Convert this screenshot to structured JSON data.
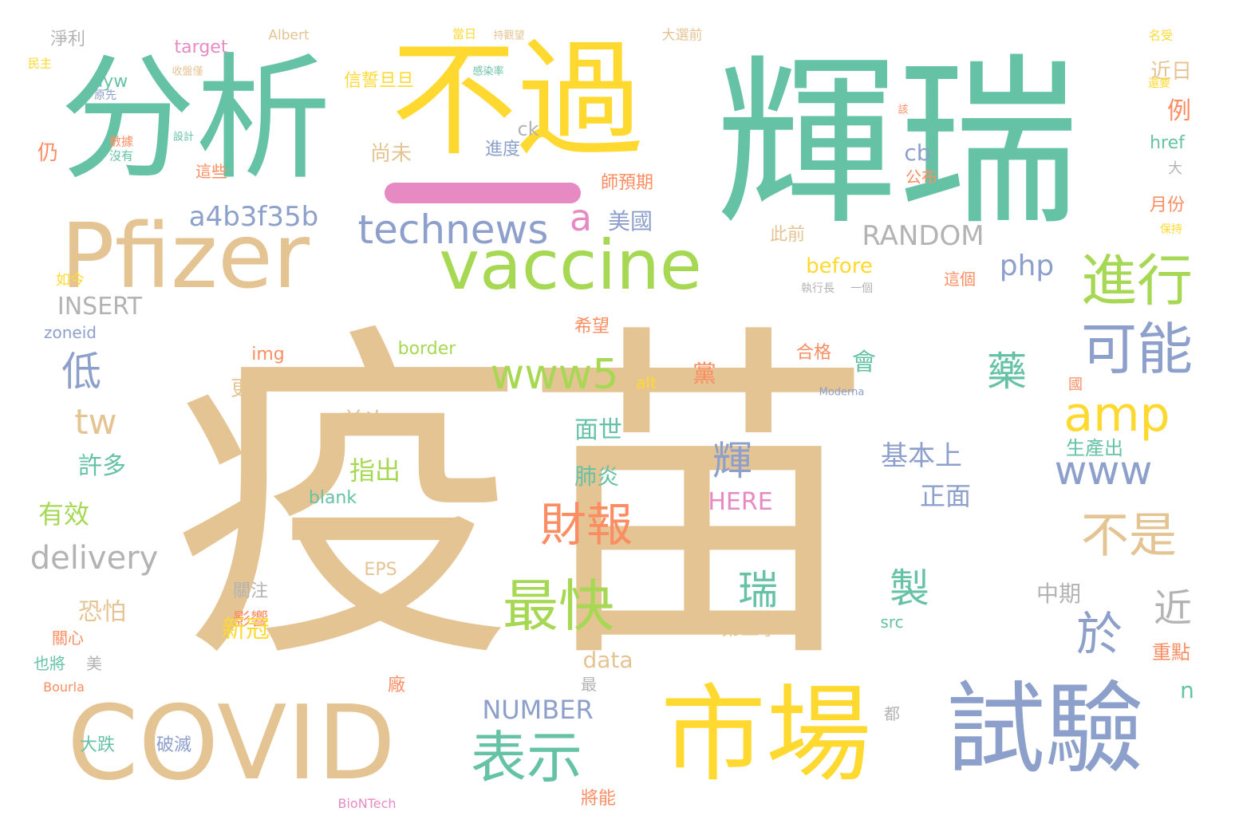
{
  "palette": {
    "tan": "#e5c494",
    "teal": "#66c2a5",
    "yellow": "#ffd92f",
    "lime": "#a6d854",
    "blue": "#8da0cb",
    "pink": "#e78ac3",
    "orange": "#fc8d62",
    "gray": "#b3b3b3"
  },
  "dash_color": "#e78ac3",
  "words": [
    {
      "t": "疫苗",
      "c": "tan"
    },
    {
      "t": "輝瑞",
      "c": "teal"
    },
    {
      "t": "分析",
      "c": "teal"
    },
    {
      "t": "不過",
      "c": "yellow"
    },
    {
      "t": "Pfizer",
      "c": "tan"
    },
    {
      "t": "COVID",
      "c": "tan"
    },
    {
      "t": "市場",
      "c": "yellow"
    },
    {
      "t": "試驗",
      "c": "blue"
    },
    {
      "t": "vaccine",
      "c": "lime"
    },
    {
      "t": "technews",
      "c": "blue"
    },
    {
      "t": "進行",
      "c": "lime"
    },
    {
      "t": "可能",
      "c": "blue"
    },
    {
      "t": "amp",
      "c": "yellow"
    },
    {
      "t": "www5",
      "c": "lime"
    },
    {
      "t": "最快",
      "c": "lime"
    },
    {
      "t": "表示",
      "c": "teal"
    },
    {
      "t": "財報",
      "c": "orange"
    },
    {
      "t": "不是",
      "c": "tan"
    },
    {
      "t": "於",
      "c": "blue"
    },
    {
      "t": "近",
      "c": "gray"
    },
    {
      "t": "www",
      "c": "blue"
    },
    {
      "t": "a",
      "c": "pink"
    },
    {
      "t": "a4b3f35b",
      "c": "blue"
    },
    {
      "t": "RANDOM",
      "c": "gray"
    },
    {
      "t": "php",
      "c": "blue"
    },
    {
      "t": "藥",
      "c": "teal"
    },
    {
      "t": "低",
      "c": "blue"
    },
    {
      "t": "tw",
      "c": "tan"
    },
    {
      "t": "delivery",
      "c": "gray"
    },
    {
      "t": "輝",
      "c": "blue"
    },
    {
      "t": "瑞",
      "c": "teal"
    },
    {
      "t": "製",
      "c": "teal"
    },
    {
      "t": "基本上",
      "c": "blue"
    },
    {
      "t": "正面",
      "c": "blue"
    },
    {
      "t": "HERE",
      "c": "pink"
    },
    {
      "t": "第三季",
      "c": "tan"
    },
    {
      "t": "NUMBER",
      "c": "blue"
    },
    {
      "t": "data",
      "c": "tan"
    },
    {
      "t": "美國",
      "c": "blue"
    },
    {
      "t": "信誓旦旦",
      "c": "yellow"
    },
    {
      "t": "淨利",
      "c": "gray"
    },
    {
      "t": "target",
      "c": "pink"
    },
    {
      "t": "Albert",
      "c": "tan"
    },
    {
      "t": "大選前",
      "c": "tan"
    },
    {
      "t": "當日",
      "c": "yellow"
    },
    {
      "t": "持觀望",
      "c": "tan"
    },
    {
      "t": "名受",
      "c": "yellow"
    },
    {
      "t": "民主",
      "c": "yellow"
    },
    {
      "t": "收盤僅",
      "c": "tan"
    },
    {
      "t": "感染率",
      "c": "teal"
    },
    {
      "t": "ayw",
      "c": "teal"
    },
    {
      "t": "原先",
      "c": "blue"
    },
    {
      "t": "近日",
      "c": "tan"
    },
    {
      "t": "例",
      "c": "orange"
    },
    {
      "t": "還要",
      "c": "yellow"
    },
    {
      "t": "仍",
      "c": "orange"
    },
    {
      "t": "數據",
      "c": "orange"
    },
    {
      "t": "沒有",
      "c": "teal"
    },
    {
      "t": "設計",
      "c": "teal"
    },
    {
      "t": "ck",
      "c": "gray"
    },
    {
      "t": "進度",
      "c": "blue"
    },
    {
      "t": "尚未",
      "c": "tan"
    },
    {
      "t": "cb",
      "c": "blue"
    },
    {
      "t": "href",
      "c": "teal"
    },
    {
      "t": "這些",
      "c": "orange"
    },
    {
      "t": "公布",
      "c": "orange"
    },
    {
      "t": "師預期",
      "c": "orange"
    },
    {
      "t": "該",
      "c": "orange"
    },
    {
      "t": "大",
      "c": "gray"
    },
    {
      "t": "月份",
      "c": "orange"
    },
    {
      "t": "保持",
      "c": "yellow"
    },
    {
      "t": "INSERT",
      "c": "gray"
    },
    {
      "t": "zoneid",
      "c": "blue"
    },
    {
      "t": "如今",
      "c": "yellow"
    },
    {
      "t": "此前",
      "c": "tan"
    },
    {
      "t": "before",
      "c": "yellow"
    },
    {
      "t": "這個",
      "c": "orange"
    },
    {
      "t": "一個",
      "c": "gray"
    },
    {
      "t": "執行長",
      "c": "gray"
    },
    {
      "t": "希望",
      "c": "orange"
    },
    {
      "t": "border",
      "c": "lime"
    },
    {
      "t": "img",
      "c": "orange"
    },
    {
      "t": "合格",
      "c": "orange"
    },
    {
      "t": "會",
      "c": "teal"
    },
    {
      "t": "黨",
      "c": "orange"
    },
    {
      "t": "更",
      "c": "tan"
    },
    {
      "t": "首次",
      "c": "tan"
    },
    {
      "t": "alt",
      "c": "yellow"
    },
    {
      "t": "面世",
      "c": "teal"
    },
    {
      "t": "國",
      "c": "orange"
    },
    {
      "t": "生產出",
      "c": "teal"
    },
    {
      "t": "許多",
      "c": "teal"
    },
    {
      "t": "指出",
      "c": "lime"
    },
    {
      "t": "肺炎",
      "c": "teal"
    },
    {
      "t": "有效",
      "c": "lime"
    },
    {
      "t": "blank",
      "c": "teal"
    },
    {
      "t": "恐怕",
      "c": "tan"
    },
    {
      "t": "關注",
      "c": "gray"
    },
    {
      "t": "影響",
      "c": "orange"
    },
    {
      "t": "新冠",
      "c": "yellow"
    },
    {
      "t": "中期",
      "c": "gray"
    },
    {
      "t": "重點",
      "c": "orange"
    },
    {
      "t": "EPS",
      "c": "tan"
    },
    {
      "t": "src",
      "c": "teal"
    },
    {
      "t": "n",
      "c": "teal"
    },
    {
      "t": "也將",
      "c": "teal"
    },
    {
      "t": "美",
      "c": "gray"
    },
    {
      "t": "關心",
      "c": "orange"
    },
    {
      "t": "Bourla",
      "c": "orange"
    },
    {
      "t": "大跌",
      "c": "teal"
    },
    {
      "t": "破滅",
      "c": "blue"
    },
    {
      "t": "廠",
      "c": "orange"
    },
    {
      "t": "都",
      "c": "gray"
    },
    {
      "t": "將能",
      "c": "orange"
    },
    {
      "t": "最",
      "c": "gray"
    },
    {
      "t": "BioNTech",
      "c": "pink"
    },
    {
      "t": "Moderna",
      "c": "blue"
    }
  ]
}
